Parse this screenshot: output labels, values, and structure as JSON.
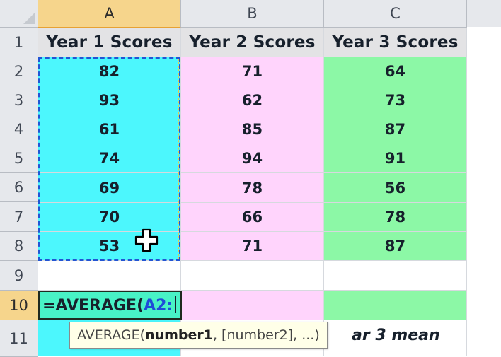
{
  "columns": [
    {
      "label": "A"
    },
    {
      "label": "B"
    },
    {
      "label": "C"
    }
  ],
  "rows": [
    "1",
    "2",
    "3",
    "4",
    "5",
    "6",
    "7",
    "8",
    "9",
    "10",
    "11"
  ],
  "headers": {
    "a": "Year 1 Scores",
    "b": "Year 2 Scores",
    "c": "Year 3 Scores"
  },
  "values": {
    "a": [
      "82",
      "93",
      "61",
      "74",
      "69",
      "70",
      "53"
    ],
    "b": [
      "71",
      "62",
      "85",
      "94",
      "78",
      "66",
      "71"
    ],
    "c": [
      "64",
      "73",
      "87",
      "91",
      "56",
      "78",
      "87"
    ]
  },
  "active_cell": {
    "formula_prefix": "=AVERAGE(",
    "formula_ref": "A2:"
  },
  "tooltip": {
    "func": "AVERAGE(",
    "arg1": "number1",
    "rest": ", [number2], ...)"
  },
  "row11_c_text": "ar 3 mean",
  "colors": {
    "col_a_fill": "#4cf7fd",
    "col_b_fill": "#ffd4fc",
    "col_c_fill": "#8cf8a6",
    "selection_header": "#f6d58c"
  }
}
